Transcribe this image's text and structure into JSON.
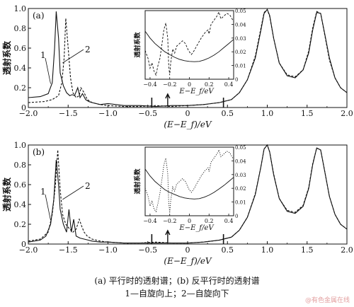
{
  "figure": {
    "caption_line1": "(a)  平行时的透射谱；(b)  反平行时的透射谱",
    "caption_line2": "1—自旋向上；2—自旋向下",
    "watermark": "@有色金属在线"
  },
  "chart_data": [
    {
      "type": "line",
      "panel_label": "(a)",
      "xlabel": "(E−E_f)/eV",
      "ylabel": "透射系数",
      "xlim": [
        -2.0,
        2.0
      ],
      "ylim": [
        0.0,
        1.0
      ],
      "x_ticks": [
        "−2.0",
        "−1.5",
        "−1.0",
        "−0.5",
        "0",
        "0.5",
        "1.0",
        "1.5",
        "2.0"
      ],
      "y_ticks": [
        "0",
        "0.2",
        "0.4",
        "0.6",
        "0.8",
        "1.0"
      ],
      "curve_labels": [
        "1",
        "2"
      ],
      "series": [
        {
          "name": "1",
          "style": "solid",
          "x": [
            -2.0,
            -1.85,
            -1.75,
            -1.7,
            -1.67,
            -1.65,
            -1.62,
            -1.6,
            -1.56,
            -1.52,
            -1.48,
            -1.45,
            -1.42,
            -1.38,
            -1.35,
            -1.32,
            -1.28,
            -1.24,
            -1.2,
            -1.1,
            -1.0,
            -0.8,
            -0.6,
            -0.4,
            -0.2,
            0.0,
            0.2,
            0.4,
            0.55,
            0.65,
            0.75,
            0.85,
            0.92,
            0.96,
            1.0,
            1.03,
            1.08,
            1.15,
            1.25,
            1.35,
            1.45,
            1.52,
            1.57,
            1.62,
            1.67,
            1.72,
            1.78,
            1.85,
            1.92,
            2.0
          ],
          "y": [
            0.1,
            0.11,
            0.14,
            0.25,
            0.6,
            0.97,
            0.7,
            0.35,
            0.22,
            0.15,
            0.12,
            0.13,
            0.12,
            0.2,
            0.1,
            0.14,
            0.08,
            0.06,
            0.05,
            0.03,
            0.04,
            0.02,
            0.02,
            0.01,
            0.02,
            0.02,
            0.03,
            0.05,
            0.08,
            0.15,
            0.28,
            0.5,
            0.78,
            0.95,
            0.99,
            0.93,
            0.7,
            0.45,
            0.32,
            0.3,
            0.38,
            0.55,
            0.78,
            0.96,
            0.95,
            0.75,
            0.5,
            0.3,
            0.2,
            0.15
          ]
        },
        {
          "name": "2",
          "style": "dashed",
          "x": [
            -2.0,
            -1.8,
            -1.7,
            -1.62,
            -1.58,
            -1.55,
            -1.53,
            -1.5,
            -1.47,
            -1.44,
            -1.4,
            -1.36,
            -1.34,
            -1.3,
            -1.26,
            -1.2,
            -1.1,
            -1.0,
            -0.8,
            -0.6,
            -0.4,
            -0.2,
            0.0,
            0.2,
            0.4,
            0.55,
            0.65,
            0.75,
            0.85,
            0.92,
            0.96,
            1.0,
            1.03,
            1.08,
            1.15,
            1.25,
            1.35,
            1.45,
            1.52,
            1.57,
            1.62,
            1.67,
            1.72,
            1.78,
            1.85,
            1.92,
            2.0
          ],
          "y": [
            0.05,
            0.06,
            0.08,
            0.12,
            0.25,
            0.5,
            0.9,
            0.6,
            0.3,
            0.15,
            0.1,
            0.12,
            0.2,
            0.15,
            0.08,
            0.05,
            0.03,
            0.02,
            0.01,
            0.01,
            0.02,
            0.01,
            0.02,
            0.03,
            0.05,
            0.08,
            0.15,
            0.28,
            0.52,
            0.8,
            0.96,
            0.99,
            0.92,
            0.7,
            0.45,
            0.33,
            0.31,
            0.38,
            0.57,
            0.8,
            0.97,
            0.95,
            0.74,
            0.48,
            0.3,
            0.2,
            0.15
          ]
        }
      ],
      "inset": {
        "ylabel": "透射系数",
        "xlabel": "E−E_f/eV",
        "xlim": [
          -0.45,
          0.45
        ],
        "ylim": [
          0.0,
          0.05
        ],
        "x_ticks": [
          "−0.4",
          "−0.2",
          "0",
          "0.2",
          "0.4"
        ],
        "y_ticks": [
          "0",
          "0.01",
          "0.02",
          "0.03",
          "0.04",
          "0.05"
        ],
        "series": [
          {
            "name": "1",
            "style": "solid",
            "x": [
              -0.45,
              -0.4,
              -0.35,
              -0.3,
              -0.25,
              -0.2,
              -0.15,
              -0.1,
              -0.05,
              0.0,
              0.05,
              0.1,
              0.15,
              0.2,
              0.25,
              0.3,
              0.35,
              0.4,
              0.45
            ],
            "y": [
              0.035,
              0.03,
              0.026,
              0.023,
              0.02,
              0.018,
              0.016,
              0.0145,
              0.0135,
              0.013,
              0.0128,
              0.013,
              0.014,
              0.0155,
              0.0175,
              0.02,
              0.023,
              0.026,
              0.029
            ]
          },
          {
            "name": "2",
            "style": "dashed",
            "x": [
              -0.45,
              -0.42,
              -0.4,
              -0.38,
              -0.36,
              -0.34,
              -0.32,
              -0.3,
              -0.28,
              -0.26,
              -0.24,
              -0.22,
              -0.21,
              -0.2,
              -0.19,
              -0.17,
              -0.15,
              -0.13,
              -0.1,
              -0.07,
              -0.04,
              -0.01,
              0.02,
              0.05,
              0.08,
              0.12,
              0.16,
              0.19,
              0.2,
              0.22,
              0.25,
              0.28,
              0.3,
              0.32,
              0.35,
              0.38,
              0.41,
              0.45
            ],
            "y": [
              0.021,
              0.015,
              0.008,
              0.012,
              0.006,
              0.003,
              0.01,
              0.015,
              0.025,
              0.036,
              0.041,
              0.03,
              0.01,
              0.003,
              0.012,
              0.022,
              0.019,
              0.024,
              0.026,
              0.028,
              0.026,
              0.021,
              0.018,
              0.021,
              0.025,
              0.03,
              0.034,
              0.036,
              0.033,
              0.04,
              0.043,
              0.046,
              0.049,
              0.044,
              0.046,
              0.048,
              0.047,
              0.042
            ]
          }
        ]
      }
    },
    {
      "type": "line",
      "panel_label": "(b)",
      "xlabel": "(E−E_f)/eV",
      "ylabel": "透射系数",
      "xlim": [
        -2.0,
        2.0
      ],
      "ylim": [
        0.0,
        1.0
      ],
      "x_ticks": [
        "−2.0",
        "−1.5",
        "−1.0",
        "−0.5",
        "0",
        "0.5",
        "1.0",
        "1.5",
        "2.0"
      ],
      "y_ticks": [
        "0",
        "0.2",
        "0.4",
        "0.6",
        "0.8",
        "1.0"
      ],
      "curve_labels": [
        "1",
        "2"
      ],
      "series": [
        {
          "name": "1",
          "style": "solid",
          "x": [
            -2.0,
            -1.85,
            -1.78,
            -1.72,
            -1.68,
            -1.65,
            -1.62,
            -1.6,
            -1.56,
            -1.52,
            -1.49,
            -1.46,
            -1.43,
            -1.4,
            -1.35,
            -1.3,
            -1.25,
            -1.2,
            -1.1,
            -1.0,
            -0.8,
            -0.6,
            -0.4,
            -0.2,
            0.0,
            0.2,
            0.4,
            0.55,
            0.65,
            0.75,
            0.85,
            0.92,
            0.96,
            1.0,
            1.03,
            1.08,
            1.15,
            1.25,
            1.35,
            1.45,
            1.52,
            1.57,
            1.62,
            1.67,
            1.72,
            1.78,
            1.85,
            1.92,
            2.0
          ],
          "y": [
            0.02,
            0.04,
            0.08,
            0.2,
            0.45,
            0.85,
            0.6,
            0.35,
            0.2,
            0.12,
            0.35,
            0.12,
            0.25,
            0.08,
            0.06,
            0.05,
            0.04,
            0.03,
            0.02,
            0.02,
            0.01,
            0.01,
            0.01,
            0.01,
            0.01,
            0.02,
            0.04,
            0.07,
            0.14,
            0.27,
            0.5,
            0.78,
            0.96,
            1.0,
            0.93,
            0.7,
            0.46,
            0.33,
            0.31,
            0.38,
            0.56,
            0.8,
            0.97,
            0.95,
            0.74,
            0.48,
            0.3,
            0.2,
            0.15
          ]
        },
        {
          "name": "2",
          "style": "dashed",
          "x": [
            -2.0,
            -1.85,
            -1.75,
            -1.7,
            -1.66,
            -1.63,
            -1.6,
            -1.57,
            -1.53,
            -1.48,
            -1.44,
            -1.4,
            -1.36,
            -1.33,
            -1.3,
            -1.26,
            -1.2,
            -1.1,
            -1.0,
            -0.8,
            -0.6,
            -0.4,
            -0.2,
            0.0,
            0.2,
            0.4,
            0.55,
            0.65,
            0.75,
            0.85,
            0.92,
            0.96,
            1.0,
            1.03,
            1.08,
            1.15,
            1.25,
            1.35,
            1.45,
            1.52,
            1.57,
            1.62,
            1.67,
            1.72,
            1.78,
            1.85,
            1.92,
            2.0
          ],
          "y": [
            0.03,
            0.05,
            0.12,
            0.3,
            0.6,
            0.95,
            0.55,
            0.3,
            0.2,
            0.15,
            0.12,
            0.15,
            0.25,
            0.18,
            0.12,
            0.08,
            0.05,
            0.03,
            0.02,
            0.01,
            0.01,
            0.02,
            0.01,
            0.01,
            0.02,
            0.04,
            0.07,
            0.14,
            0.27,
            0.51,
            0.78,
            0.96,
            1.0,
            0.93,
            0.71,
            0.46,
            0.34,
            0.32,
            0.39,
            0.57,
            0.81,
            0.97,
            0.95,
            0.74,
            0.48,
            0.3,
            0.2,
            0.15
          ]
        }
      ],
      "inset": {
        "ylabel": "透射系数",
        "xlabel": "E−E_f/eV",
        "xlim": [
          -0.45,
          0.45
        ],
        "ylim": [
          0.0,
          0.05
        ],
        "x_ticks": [
          "−0.4",
          "−0.2",
          "0",
          "0.2",
          "0.4"
        ],
        "y_ticks": [
          "0",
          "0.01",
          "0.02",
          "0.03",
          "0.04",
          "0.05"
        ],
        "series": [
          {
            "name": "1",
            "style": "solid",
            "x": [
              -0.45,
              -0.4,
              -0.35,
              -0.3,
              -0.25,
              -0.2,
              -0.15,
              -0.1,
              -0.05,
              0.0,
              0.05,
              0.1,
              0.15,
              0.2,
              0.25,
              0.3,
              0.35,
              0.4,
              0.45
            ],
            "y": [
              0.034,
              0.029,
              0.025,
              0.022,
              0.019,
              0.017,
              0.0155,
              0.014,
              0.013,
              0.0125,
              0.0122,
              0.0125,
              0.0135,
              0.015,
              0.017,
              0.0195,
              0.022,
              0.025,
              0.028
            ]
          },
          {
            "name": "2",
            "style": "dotted",
            "x": [
              -0.45,
              -0.42,
              -0.4,
              -0.38,
              -0.36,
              -0.34,
              -0.32,
              -0.3,
              -0.28,
              -0.26,
              -0.24,
              -0.22,
              -0.21,
              -0.2,
              -0.19,
              -0.17,
              -0.15,
              -0.13,
              -0.1,
              -0.07,
              -0.04,
              -0.01,
              0.02,
              0.05,
              0.08,
              0.12,
              0.16,
              0.19,
              0.2,
              0.22,
              0.25,
              0.28,
              0.3,
              0.32,
              0.35,
              0.38,
              0.41,
              0.45
            ],
            "y": [
              0.02,
              0.014,
              0.007,
              0.011,
              0.005,
              0.003,
              0.009,
              0.016,
              0.026,
              0.037,
              0.042,
              0.031,
              0.01,
              0.002,
              0.011,
              0.021,
              0.018,
              0.023,
              0.025,
              0.027,
              0.025,
              0.02,
              0.017,
              0.02,
              0.024,
              0.029,
              0.033,
              0.035,
              0.032,
              0.039,
              0.042,
              0.045,
              0.048,
              0.043,
              0.045,
              0.047,
              0.046,
              0.041
            ]
          }
        ]
      }
    }
  ]
}
